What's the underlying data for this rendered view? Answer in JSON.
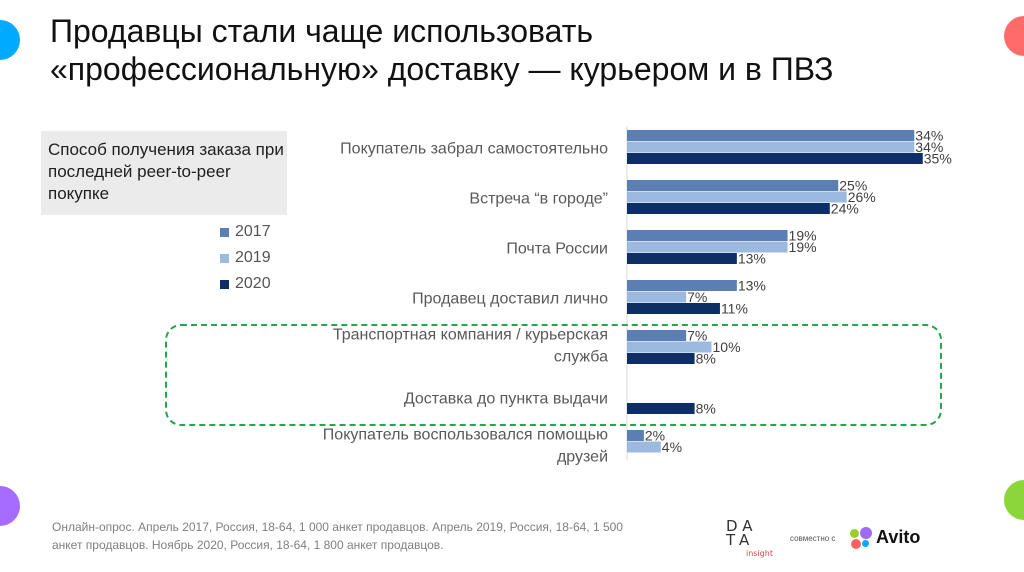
{
  "title_line1": "Продавцы стали чаще использовать",
  "title_line2": "«профессиональную» доставку — курьером и в ПВЗ",
  "legend_title": "Способ получения заказа при последней peer-to-peer покупке",
  "source": "Онлайн-опрос. Апрель 2017, Россия, 18-64, 1 000 анкет продавцов. Апрель 2019, Россия, 18-64, 1 500 анкет продавцов. Ноябрь 2020, Россия, 18-64, 1 800 анкет продавцов.",
  "logo": {
    "line1": "DA",
    "line2": "TA",
    "sub": "insight",
    "together": "совместно с",
    "partner": "Avito"
  },
  "colors": {
    "highlight": "#22a84a"
  },
  "chart_data": {
    "type": "bar",
    "orientation": "horizontal",
    "categories": [
      [
        "Покупатель забрал самостоятельно"
      ],
      [
        "Встреча “в городе”"
      ],
      [
        "Почта России"
      ],
      [
        "Продавец доставил лично"
      ],
      [
        "Транспортная компания / курьерская",
        "служба"
      ],
      [
        "Доставка до пункта выдачи"
      ],
      [
        "Покупатель воспользовался помощью",
        "друзей"
      ]
    ],
    "series": [
      {
        "name": "2017",
        "color": "#5b7fb5",
        "values": [
          34,
          25,
          19,
          13,
          7,
          null,
          2
        ]
      },
      {
        "name": "2019",
        "color": "#9cb9e0",
        "values": [
          34,
          26,
          19,
          7,
          10,
          null,
          4
        ]
      },
      {
        "name": "2020",
        "color": "#0d2f66",
        "values": [
          35,
          24,
          13,
          11,
          8,
          8,
          null
        ]
      }
    ],
    "unit": "%",
    "highlighted_categories": [
      "Транспортная компания / курьерская служба",
      "Доставка до пункта выдачи"
    ]
  }
}
